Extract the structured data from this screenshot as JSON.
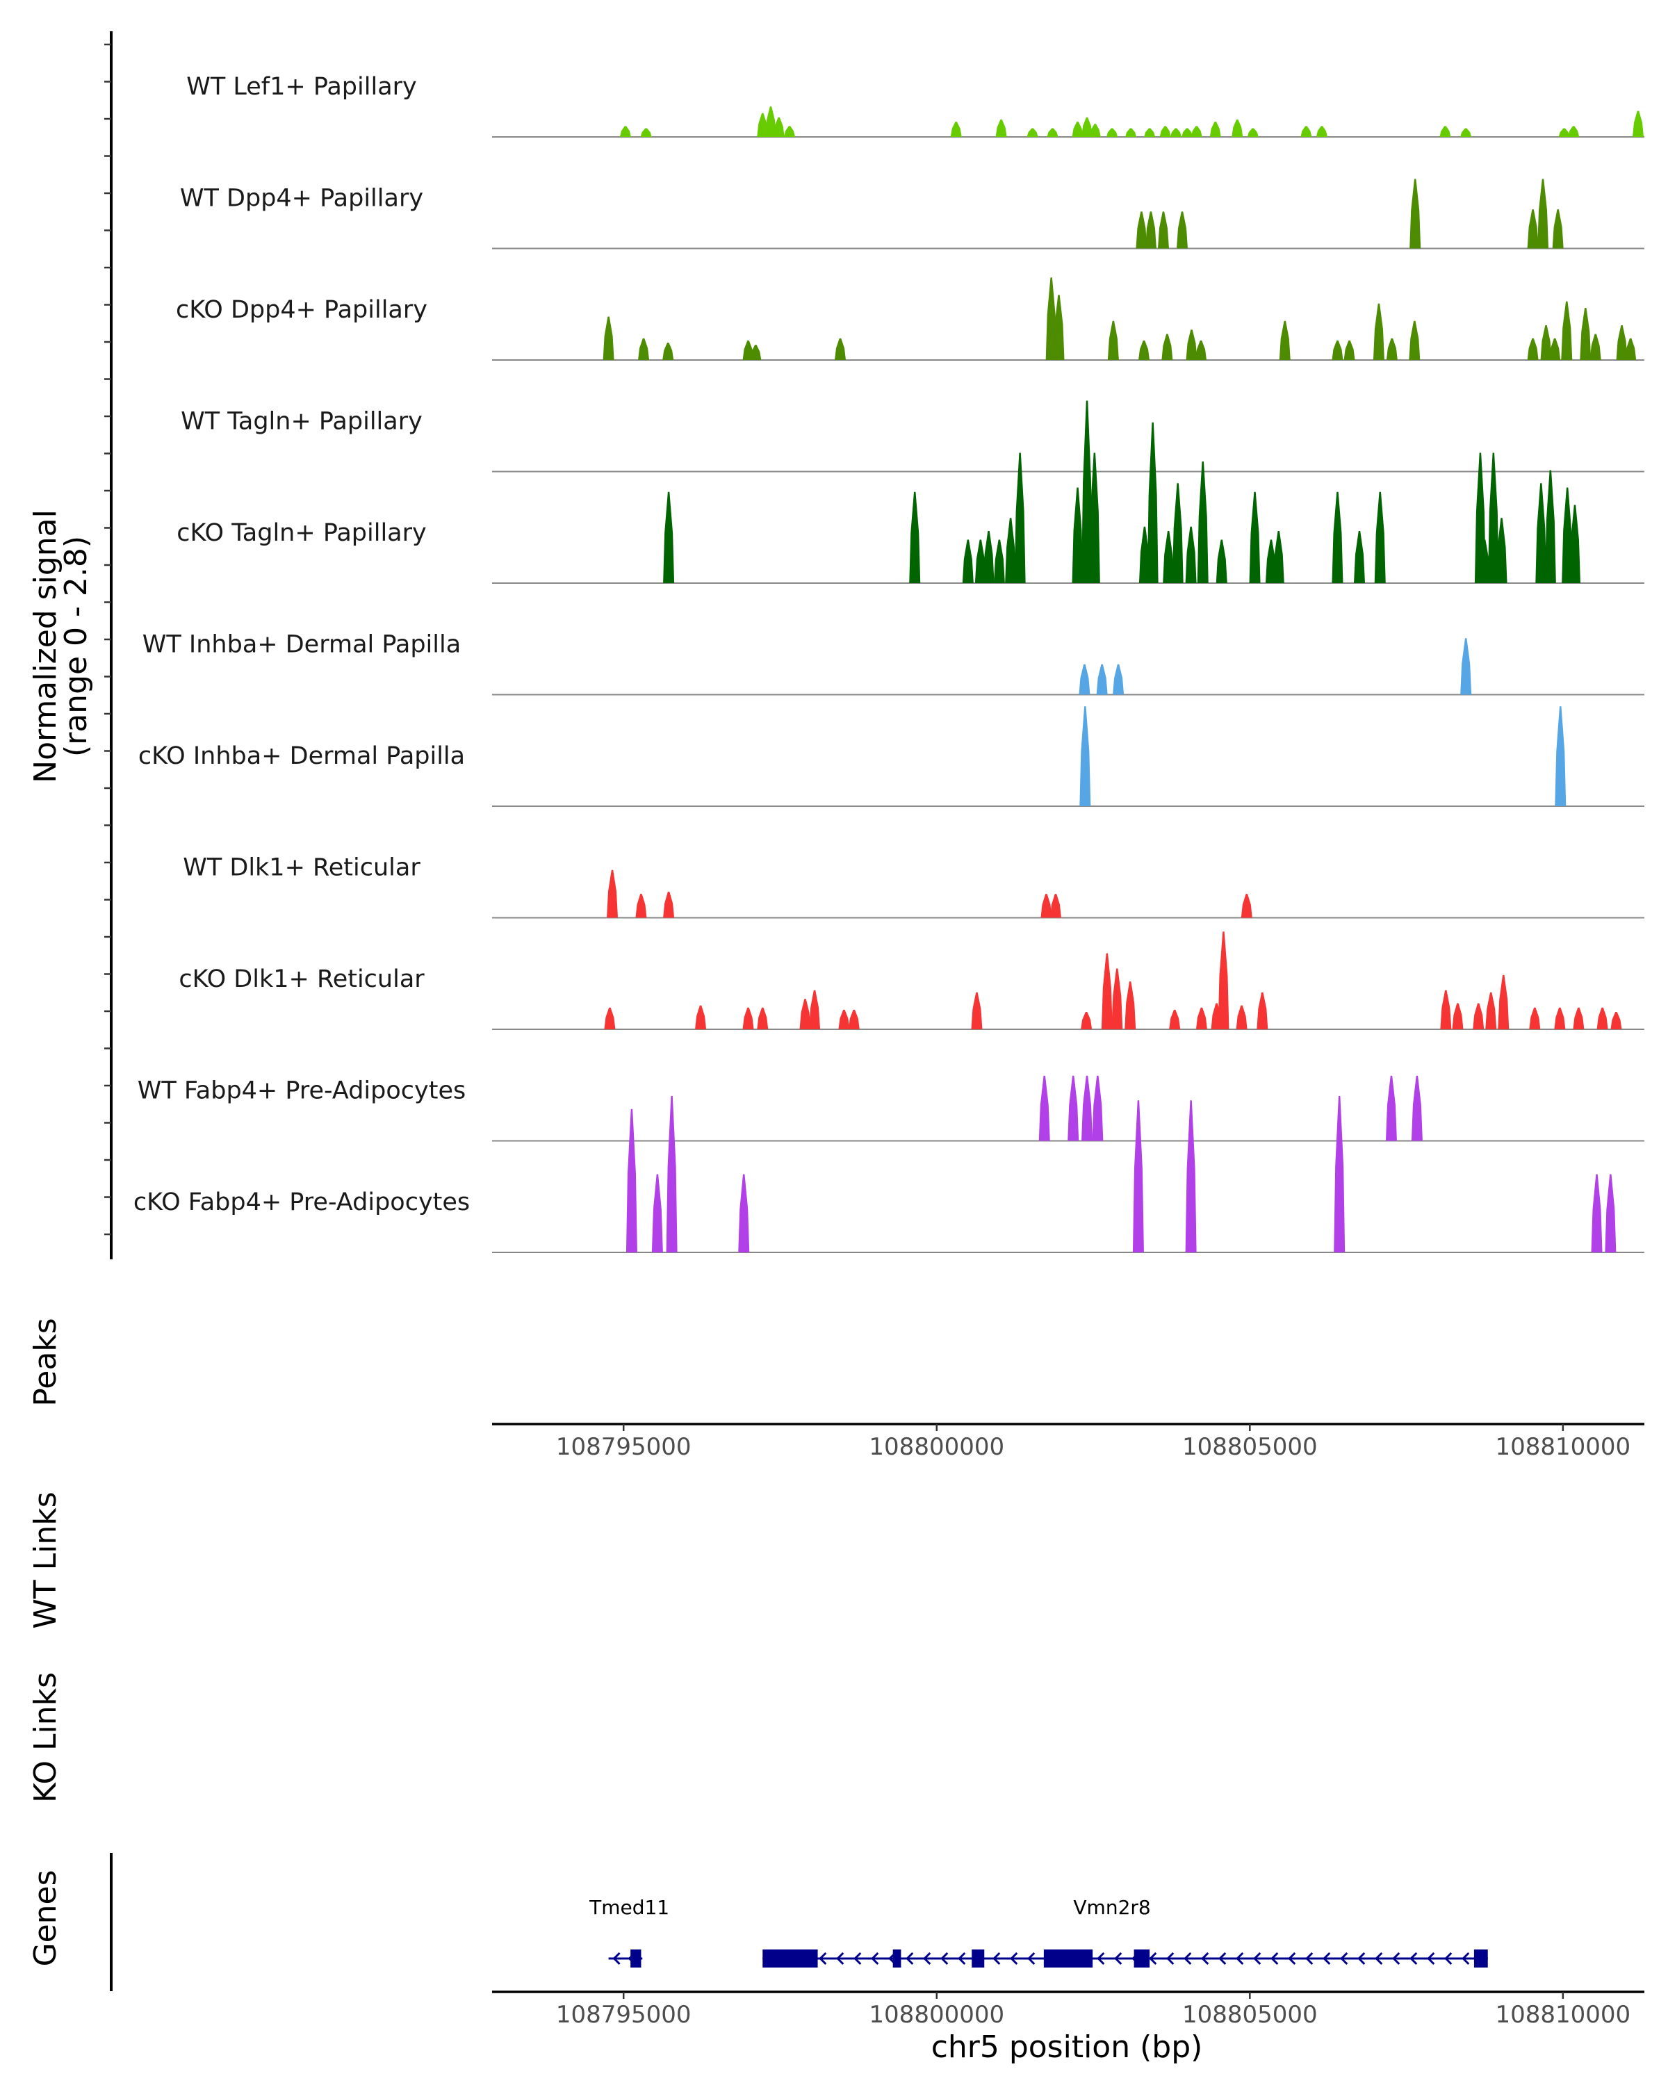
{
  "chart_data": {
    "type": "area",
    "region": "chr5",
    "x_range": [
      108792900,
      108811300
    ],
    "xlabel": "chr5 position (bp)",
    "ylabel_line1": "Normalized signal",
    "ylabel_line2": "(range 0 - 2.8)",
    "y_range": [
      0,
      2.8
    ],
    "x_ticks": [
      108795000,
      108800000,
      108805000,
      108810000
    ],
    "x_tick_labels": [
      "108795000",
      "108800000",
      "108805000",
      "108810000"
    ],
    "section_labels": {
      "peaks": "Peaks",
      "wt_links": "WT Links",
      "ko_links": "KO Links",
      "genes": "Genes"
    },
    "tracks": [
      {
        "name": "WT Lef1+ Papillary",
        "color": "#66CC00",
        "peaks": [
          [
            108795030,
            0.25
          ],
          [
            108795360,
            0.2
          ],
          [
            108797220,
            0.55
          ],
          [
            108797350,
            0.7
          ],
          [
            108797480,
            0.45
          ],
          [
            108797650,
            0.25
          ],
          [
            108800310,
            0.35
          ],
          [
            108801030,
            0.4
          ],
          [
            108801530,
            0.2
          ],
          [
            108801850,
            0.2
          ],
          [
            108802250,
            0.35
          ],
          [
            108802400,
            0.45
          ],
          [
            108802530,
            0.3
          ],
          [
            108802800,
            0.2
          ],
          [
            108803100,
            0.2
          ],
          [
            108803400,
            0.2
          ],
          [
            108803650,
            0.25
          ],
          [
            108803820,
            0.2
          ],
          [
            108804000,
            0.2
          ],
          [
            108804150,
            0.25
          ],
          [
            108804450,
            0.35
          ],
          [
            108804800,
            0.4
          ],
          [
            108805050,
            0.2
          ],
          [
            108805900,
            0.25
          ],
          [
            108806150,
            0.25
          ],
          [
            108808120,
            0.25
          ],
          [
            108808450,
            0.2
          ],
          [
            108810020,
            0.2
          ],
          [
            108810170,
            0.25
          ],
          [
            108811200,
            0.6
          ]
        ]
      },
      {
        "name": "WT Dpp4+ Papillary",
        "color": "#4D8C00",
        "peaks": [
          [
            108803270,
            0.85
          ],
          [
            108803420,
            0.85
          ],
          [
            108803620,
            0.85
          ],
          [
            108803920,
            0.85
          ],
          [
            108807640,
            1.6
          ],
          [
            108809520,
            0.9
          ],
          [
            108809680,
            1.6
          ],
          [
            108809920,
            0.9
          ]
        ]
      },
      {
        "name": "cKO Dpp4+ Papillary",
        "color": "#4D8C00",
        "peaks": [
          [
            108794760,
            1.0
          ],
          [
            108795320,
            0.5
          ],
          [
            108795710,
            0.4
          ],
          [
            108796990,
            0.45
          ],
          [
            108797110,
            0.35
          ],
          [
            108798460,
            0.5
          ],
          [
            108801830,
            1.9
          ],
          [
            108801950,
            1.5
          ],
          [
            108802820,
            0.9
          ],
          [
            108803310,
            0.45
          ],
          [
            108803680,
            0.6
          ],
          [
            108804070,
            0.7
          ],
          [
            108804220,
            0.45
          ],
          [
            108805560,
            0.9
          ],
          [
            108806400,
            0.45
          ],
          [
            108806590,
            0.45
          ],
          [
            108807060,
            1.3
          ],
          [
            108807270,
            0.5
          ],
          [
            108807630,
            0.9
          ],
          [
            108809520,
            0.5
          ],
          [
            108809730,
            0.8
          ],
          [
            108809870,
            0.5
          ],
          [
            108810060,
            1.35
          ],
          [
            108810360,
            1.2
          ],
          [
            108810520,
            0.6
          ],
          [
            108810940,
            0.8
          ],
          [
            108811080,
            0.5
          ]
        ]
      },
      {
        "name": "WT Tagln+ Papillary",
        "color": "#006400",
        "peaks": []
      },
      {
        "name": "cKO Tagln+ Papillary",
        "color": "#006400",
        "peaks": [
          [
            108795720,
            2.1
          ],
          [
            108799650,
            2.1
          ],
          [
            108800500,
            1.0
          ],
          [
            108800700,
            1.0
          ],
          [
            108800830,
            1.2
          ],
          [
            108801000,
            1.0
          ],
          [
            108801180,
            1.5
          ],
          [
            108801330,
            3.0
          ],
          [
            108802250,
            2.2
          ],
          [
            108802400,
            4.2
          ],
          [
            108802520,
            3.0
          ],
          [
            108803320,
            1.3
          ],
          [
            108803450,
            3.7
          ],
          [
            108803700,
            1.2
          ],
          [
            108803850,
            2.3
          ],
          [
            108804060,
            1.3
          ],
          [
            108804250,
            2.8
          ],
          [
            108804550,
            1.0
          ],
          [
            108805080,
            2.1
          ],
          [
            108805340,
            1.0
          ],
          [
            108805460,
            1.2
          ],
          [
            108806400,
            2.1
          ],
          [
            108806750,
            1.2
          ],
          [
            108807080,
            2.1
          ],
          [
            108808680,
            3.0
          ],
          [
            108808890,
            3.0
          ],
          [
            108808750,
            1.0
          ],
          [
            108809020,
            1.5
          ],
          [
            108809650,
            2.3
          ],
          [
            108809800,
            2.6
          ],
          [
            108810070,
            2.2
          ],
          [
            108810190,
            1.8
          ]
        ]
      },
      {
        "name": "WT Inhba+ Dermal Papilla",
        "color": "#56A5E5",
        "peaks": [
          [
            108802360,
            0.7
          ],
          [
            108802640,
            0.7
          ],
          [
            108802900,
            0.7
          ],
          [
            108808450,
            1.3
          ]
        ]
      },
      {
        "name": "cKO Inhba+ Dermal Papilla",
        "color": "#56A5E5",
        "peaks": [
          [
            108802370,
            2.3
          ],
          [
            108809960,
            2.3
          ]
        ]
      },
      {
        "name": "WT Dlk1+ Reticular",
        "color": "#F73434",
        "peaks": [
          [
            108794820,
            1.1
          ],
          [
            108795280,
            0.55
          ],
          [
            108795720,
            0.6
          ],
          [
            108801750,
            0.55
          ],
          [
            108801900,
            0.55
          ],
          [
            108804950,
            0.55
          ]
        ]
      },
      {
        "name": "cKO Dlk1+ Reticular",
        "color": "#F73434",
        "peaks": [
          [
            108794780,
            0.5
          ],
          [
            108796230,
            0.55
          ],
          [
            108796990,
            0.5
          ],
          [
            108797220,
            0.5
          ],
          [
            108797900,
            0.7
          ],
          [
            108798050,
            0.9
          ],
          [
            108798520,
            0.45
          ],
          [
            108798680,
            0.45
          ],
          [
            108800640,
            0.85
          ],
          [
            108802390,
            0.4
          ],
          [
            108802720,
            1.75
          ],
          [
            108802880,
            1.4
          ],
          [
            108803090,
            1.1
          ],
          [
            108803800,
            0.45
          ],
          [
            108804230,
            0.5
          ],
          [
            108804470,
            0.6
          ],
          [
            108804580,
            2.25
          ],
          [
            108804870,
            0.55
          ],
          [
            108805200,
            0.85
          ],
          [
            108808130,
            0.9
          ],
          [
            108808320,
            0.6
          ],
          [
            108808650,
            0.6
          ],
          [
            108808850,
            0.85
          ],
          [
            108809050,
            1.25
          ],
          [
            108809550,
            0.5
          ],
          [
            108809950,
            0.5
          ],
          [
            108810250,
            0.5
          ],
          [
            108810630,
            0.5
          ],
          [
            108810850,
            0.4
          ]
        ]
      },
      {
        "name": "WT Fabp4+ Pre-Adipocytes",
        "color": "#B140E8",
        "peaks": [
          [
            108801720,
            1.5
          ],
          [
            108802180,
            1.5
          ],
          [
            108802400,
            1.5
          ],
          [
            108802570,
            1.5
          ],
          [
            108807260,
            1.5
          ],
          [
            108807670,
            1.5
          ]
        ]
      },
      {
        "name": "cKO Fabp4+ Pre-Adipocytes",
        "color": "#B140E8",
        "peaks": [
          [
            108795130,
            3.3
          ],
          [
            108795540,
            1.8
          ],
          [
            108795770,
            3.6
          ],
          [
            108796920,
            1.8
          ],
          [
            108803220,
            3.5
          ],
          [
            108804060,
            3.5
          ],
          [
            108806430,
            3.6
          ],
          [
            108810540,
            1.8
          ],
          [
            108810760,
            1.8
          ]
        ]
      }
    ],
    "genes": [
      {
        "name": "Tmed11",
        "strand": "-",
        "start": 108794760,
        "end": 108795300,
        "exons": [
          [
            108795110,
            108795280
          ]
        ]
      },
      {
        "name": "Vmn2r8",
        "strand": "-",
        "start": 108797220,
        "end": 108808800,
        "exons": [
          [
            108797220,
            108798100
          ],
          [
            108799300,
            108799430
          ],
          [
            108800560,
            108800760
          ],
          [
            108801710,
            108802490
          ],
          [
            108803150,
            108803400
          ],
          [
            108808580,
            108808800
          ]
        ]
      }
    ]
  }
}
